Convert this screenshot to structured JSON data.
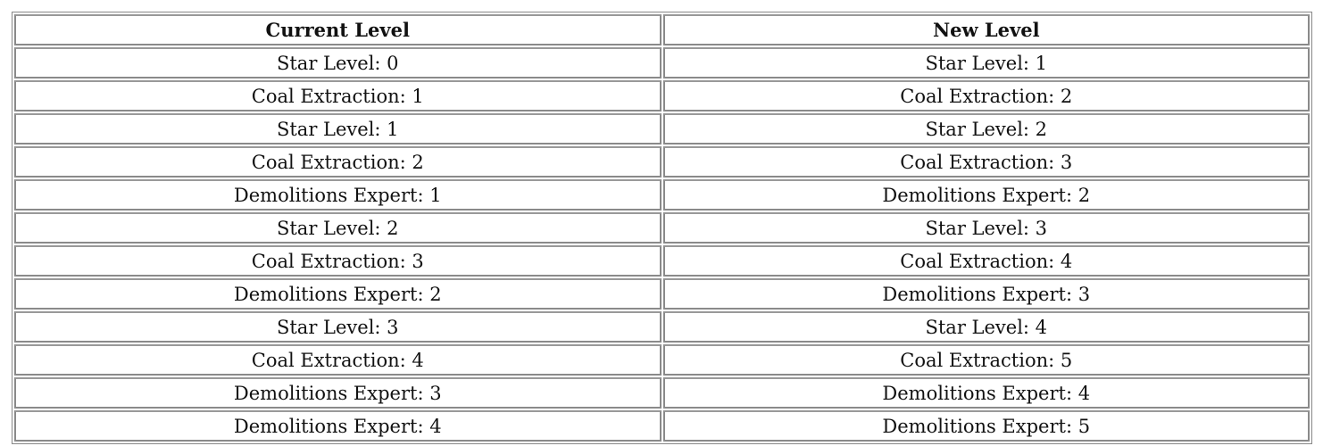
{
  "table": {
    "headers": [
      "Current Level",
      "New Level"
    ],
    "rows": [
      [
        "Star Level: 0",
        "Star Level: 1"
      ],
      [
        "Coal Extraction: 1",
        "Coal Extraction: 2"
      ],
      [
        "Star Level: 1",
        "Star Level: 2"
      ],
      [
        "Coal Extraction: 2",
        "Coal Extraction: 3"
      ],
      [
        "Demolitions Expert: 1",
        "Demolitions Expert: 2"
      ],
      [
        "Star Level: 2",
        "Star Level: 3"
      ],
      [
        "Coal Extraction: 3",
        "Coal Extraction: 4"
      ],
      [
        "Demolitions Expert: 2",
        "Demolitions Expert: 3"
      ],
      [
        "Star Level: 3",
        "Star Level: 4"
      ],
      [
        "Coal Extraction: 4",
        "Coal Extraction: 5"
      ],
      [
        "Demolitions Expert: 3",
        "Demolitions Expert: 4"
      ],
      [
        "Demolitions Expert: 4",
        "Demolitions Expert: 5"
      ]
    ]
  }
}
